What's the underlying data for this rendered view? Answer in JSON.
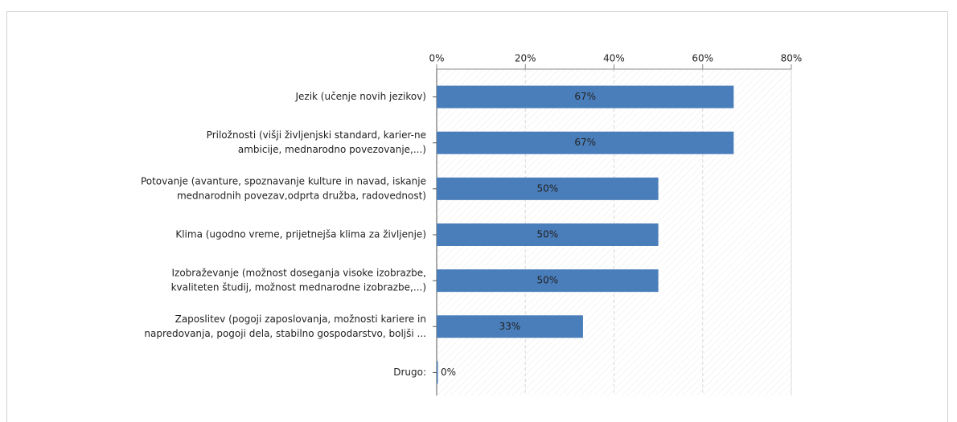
{
  "chart_data": {
    "type": "bar",
    "orientation": "horizontal",
    "categories": [
      [
        "Jezik (učenje novih jezikov)"
      ],
      [
        "Priložnosti (višji življenjski standard, karier-ne",
        "ambicije, mednarodno povezovanje,...)"
      ],
      [
        "Potovanje (avanture, spoznavanje kulture in navad, iskanje",
        "mednarodnih povezav,odprta družba, radovednost)"
      ],
      [
        "Klima (ugodno vreme, prijetnejša klima za življenje)"
      ],
      [
        "Izobraževanje (možnost doseganja visoke izobrazbe,",
        "kvaliteten študij, možnost mednarodne izobrazbe,...)"
      ],
      [
        "Zaposlitev (pogoji zaposlovanja, možnosti kariere in",
        "napredovanja, pogoji dela, stabilno gospodarstvo, boljši ..."
      ],
      [
        "Drugo:"
      ]
    ],
    "values": [
      67,
      67,
      50,
      50,
      50,
      33,
      0
    ],
    "value_labels": [
      "67%",
      "67%",
      "50%",
      "50%",
      "50%",
      "33%",
      "0%"
    ],
    "color": "#4a7ebb",
    "xlim": [
      0,
      80
    ],
    "xticks": [
      {
        "value": 0,
        "label": "0%"
      },
      {
        "value": 20,
        "label": "20%"
      },
      {
        "value": 40,
        "label": "40%"
      },
      {
        "value": 60,
        "label": "60%"
      },
      {
        "value": 80,
        "label": "80%"
      }
    ],
    "grid": true
  }
}
